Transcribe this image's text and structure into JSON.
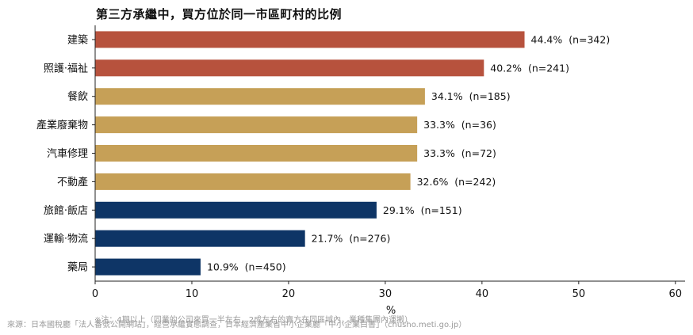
{
  "chart_data": {
    "type": "bar",
    "orientation": "horizontal",
    "title": "第三方承繼中，買方位於同一市區町村的比例",
    "xlabel": "%",
    "ylabel": "",
    "xlim": [
      0,
      61
    ],
    "xticks": [
      0,
      10,
      20,
      30,
      40,
      50,
      60
    ],
    "grid": false,
    "categories": [
      "建築",
      "照護·福祉",
      "餐飲",
      "產業廢棄物",
      "汽車修理",
      "不動產",
      "旅館·飯店",
      "運輸·物流",
      "藥局"
    ],
    "values": [
      44.4,
      40.2,
      34.1,
      33.3,
      33.3,
      32.6,
      29.1,
      21.7,
      10.9
    ],
    "data_labels": [
      "44.4%  (n=342)",
      "40.2%  (n=241)",
      "34.1%  (n=185)",
      "33.3%  (n=36)",
      "33.3%  (n=72)",
      "32.6%  (n=242)",
      "29.1%  (n=151)",
      "21.7%  (n=276)",
      "10.9%  (n=450)"
    ],
    "bar_colors": [
      "#b7523d",
      "#b7523d",
      "#c6a057",
      "#c6a057",
      "#c6a057",
      "#c6a057",
      "#0e3566",
      "#0e3566",
      "#0e3566"
    ]
  },
  "footnotes": {
    "note": "※注：4期以上（同業的公司來買一半左右，2成左右的賣方在同區域內，業種集團內運搬）",
    "source": "來源：日本國稅廳「法人番號公開網站」，經營承繼實態調查，日本經濟產業省中小企業廳「中小企業白書」（chusho.meti.go.jp）"
  }
}
